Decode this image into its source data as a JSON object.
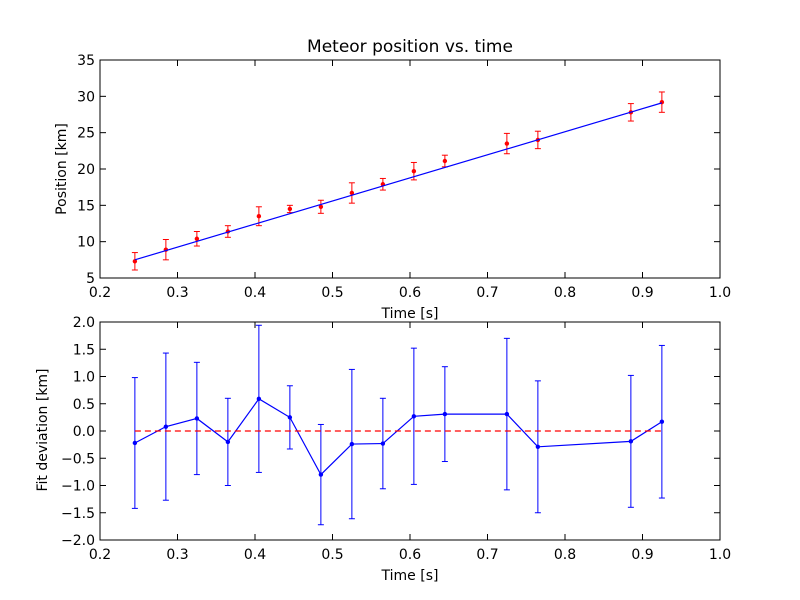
{
  "chart_data": [
    {
      "type": "scatter",
      "title": "Meteor position vs. time",
      "xlabel": "Time [s]",
      "ylabel": "Position [km]",
      "xlim": [
        0.2,
        1.0
      ],
      "ylim": [
        5,
        35
      ],
      "xticks": [
        "0.2",
        "0.3",
        "0.4",
        "0.5",
        "0.6",
        "0.7",
        "0.8",
        "0.9",
        "1.0"
      ],
      "yticks": [
        "5",
        "10",
        "15",
        "20",
        "25",
        "30",
        "35"
      ],
      "grid": false,
      "series": [
        {
          "kind": "errorbar",
          "color": "#ff0000",
          "x": [
            0.245,
            0.285,
            0.325,
            0.365,
            0.405,
            0.445,
            0.485,
            0.525,
            0.565,
            0.605,
            0.645,
            0.725,
            0.765,
            0.885,
            0.925
          ],
          "y": [
            7.3,
            8.9,
            10.4,
            11.4,
            13.5,
            14.5,
            14.8,
            16.7,
            17.9,
            19.7,
            21.1,
            23.5,
            24.0,
            27.8,
            29.2
          ],
          "yerr": [
            1.2,
            1.4,
            1.0,
            0.8,
            1.3,
            0.5,
            0.9,
            1.4,
            0.8,
            1.2,
            0.8,
            1.4,
            1.2,
            1.2,
            1.4
          ]
        },
        {
          "kind": "line",
          "color": "#0000ff",
          "x": [
            0.245,
            0.925
          ],
          "y": [
            7.5,
            29.1
          ]
        }
      ]
    },
    {
      "type": "line",
      "title": "",
      "xlabel": "Time [s]",
      "ylabel": "Fit deviation [km]",
      "xlim": [
        0.2,
        1.0
      ],
      "ylim": [
        -2.0,
        2.0
      ],
      "xticks": [
        "0.2",
        "0.3",
        "0.4",
        "0.5",
        "0.6",
        "0.7",
        "0.8",
        "0.9",
        "1.0"
      ],
      "yticks": [
        "−2.0",
        "−1.5",
        "−1.0",
        "−0.5",
        "0.0",
        "0.5",
        "1.0",
        "1.5",
        "2.0"
      ],
      "grid": false,
      "series": [
        {
          "kind": "errorbar-line",
          "color": "#0000ff",
          "x": [
            0.245,
            0.285,
            0.325,
            0.365,
            0.405,
            0.445,
            0.485,
            0.525,
            0.565,
            0.605,
            0.645,
            0.725,
            0.765,
            0.885,
            0.925
          ],
          "y": [
            -0.22,
            0.08,
            0.23,
            -0.2,
            0.59,
            0.25,
            -0.8,
            -0.24,
            -0.23,
            0.27,
            0.31,
            0.31,
            -0.29,
            -0.19,
            0.17
          ],
          "yerr": [
            1.2,
            1.35,
            1.03,
            0.8,
            1.35,
            0.58,
            0.92,
            1.37,
            0.83,
            1.25,
            0.87,
            1.39,
            1.21,
            1.21,
            1.4
          ]
        },
        {
          "kind": "dashed-line",
          "color": "#ff0000",
          "x": [
            0.245,
            0.925
          ],
          "y": [
            0.0,
            0.0
          ]
        }
      ]
    }
  ]
}
